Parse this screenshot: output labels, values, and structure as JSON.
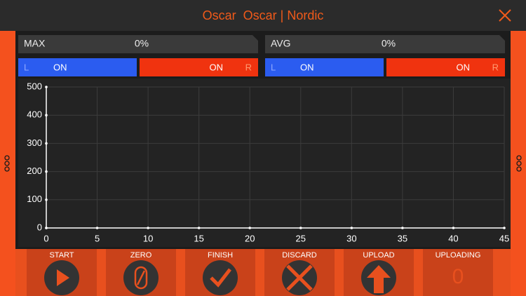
{
  "header": {
    "title": "Oscar  Oscar | Nordic"
  },
  "panels": [
    {
      "label": "MAX",
      "value": "0%",
      "left": "L",
      "left_state": "ON",
      "right_state": "ON",
      "right": "R"
    },
    {
      "label": "AVG",
      "value": "0%",
      "left": "L",
      "left_state": "ON",
      "right_state": "ON",
      "right": "R"
    }
  ],
  "chart": {
    "type": "line",
    "xlim": [
      0,
      45
    ],
    "xticks": [
      0,
      5,
      10,
      15,
      20,
      25,
      30,
      35,
      40,
      45
    ],
    "ylim": [
      0,
      500
    ],
    "yticks": [
      0,
      100,
      200,
      300,
      400,
      500
    ],
    "grid": true
  },
  "buttons": [
    {
      "label": "START"
    },
    {
      "label": "ZERO"
    },
    {
      "label": "FINISH"
    },
    {
      "label": "DISCARD"
    },
    {
      "label": "UPLOAD"
    },
    {
      "label": "UPLOADING",
      "display": "0"
    }
  ]
}
